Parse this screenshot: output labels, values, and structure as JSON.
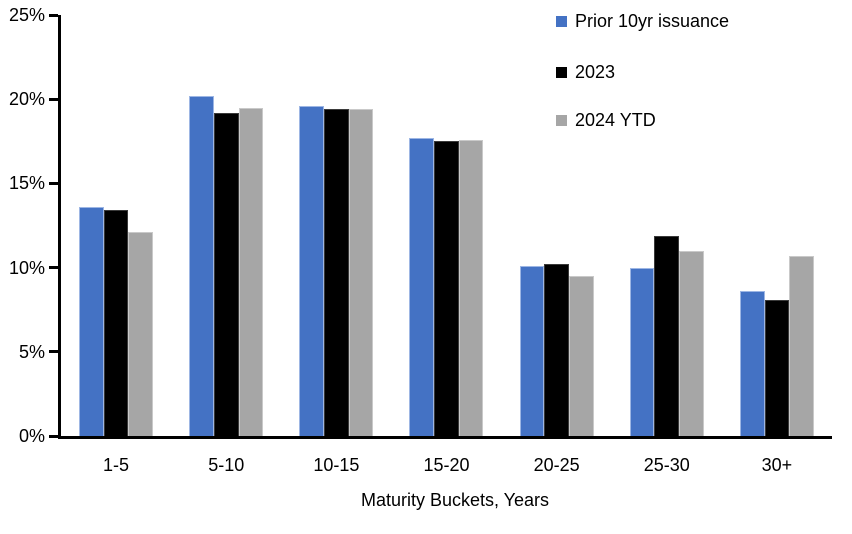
{
  "chart_data": {
    "type": "bar",
    "title": "",
    "xlabel": "Maturity Buckets, Years",
    "ylabel": "",
    "categories": [
      "1-5",
      "5-10",
      "10-15",
      "15-20",
      "20-25",
      "25-30",
      "30+"
    ],
    "series": [
      {
        "name": "Prior 10yr issuance",
        "color": "#4472C4",
        "edge_color": "#9DB6E4",
        "values": [
          13.6,
          20.2,
          19.6,
          17.7,
          10.1,
          10.0,
          8.6
        ]
      },
      {
        "name": "2023",
        "color": "#000000",
        "edge_color": "#3A3A3A",
        "values": [
          13.4,
          19.2,
          19.4,
          17.5,
          10.2,
          11.9,
          8.1
        ]
      },
      {
        "name": "2024 YTD",
        "color": "#A6A6A6",
        "edge_color": "#C9C9C9",
        "values": [
          12.1,
          19.5,
          19.4,
          17.6,
          9.5,
          11.0,
          10.7
        ]
      }
    ],
    "ylim": [
      0,
      25
    ],
    "ytick_step": 5,
    "ytick_labels": [
      "0%",
      "5%",
      "10%",
      "15%",
      "20%",
      "25%"
    ],
    "grid": false,
    "legend_position": "top-right",
    "axis_color": "#000000",
    "text_color": "#000000"
  }
}
